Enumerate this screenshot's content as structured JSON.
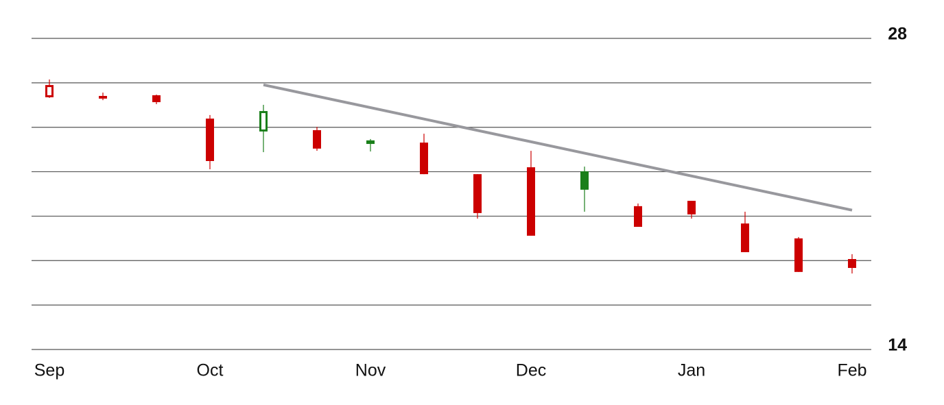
{
  "chart_data": {
    "type": "candlestick",
    "categories": [
      "Sep",
      null,
      null,
      "Oct",
      null,
      null,
      "Nov",
      null,
      null,
      "Dec",
      null,
      null,
      "Jan",
      null,
      null,
      "Feb"
    ],
    "open": [
      25.35,
      25.41,
      25.44,
      24.39,
      23.81,
      23.87,
      23.41,
      23.31,
      21.89,
      22.2,
      22.02,
      20.45,
      20.69,
      19.67,
      19.0,
      18.07
    ],
    "high": [
      26.15,
      25.56,
      25.47,
      24.55,
      25.01,
      24.02,
      23.47,
      23.71,
      21.89,
      22.94,
      22.23,
      20.57,
      20.69,
      20.2,
      19.06,
      18.29
    ],
    "low": [
      25.32,
      25.22,
      25.04,
      22.11,
      22.88,
      22.94,
      22.91,
      21.89,
      19.89,
      19.12,
      20.2,
      19.52,
      19.89,
      18.38,
      17.49,
      17.42
    ],
    "close": [
      25.9,
      25.29,
      25.13,
      22.48,
      24.73,
      23.04,
      23.25,
      21.89,
      20.14,
      19.12,
      21.19,
      19.52,
      20.08,
      18.38,
      17.49,
      17.67
    ],
    "colors": [
      "#cc0000",
      "#cc0000",
      "#cc0000",
      "#cc0000",
      "#1a7f1a",
      "#cc0000",
      "#1a7f1a",
      "#cc0000",
      "#cc0000",
      "#cc0000",
      "#1a7f1a",
      "#cc0000",
      "#cc0000",
      "#cc0000",
      "#cc0000",
      "#cc0000"
    ],
    "trendline": {
      "x": [
        4,
        15
      ],
      "values": [
        25.91,
        20.27
      ],
      "color": "#98989d"
    },
    "ylim": [
      14,
      28
    ],
    "yticks": [
      14,
      28
    ],
    "ygrid": [
      14,
      16,
      18,
      20,
      22,
      24,
      26,
      28
    ]
  }
}
